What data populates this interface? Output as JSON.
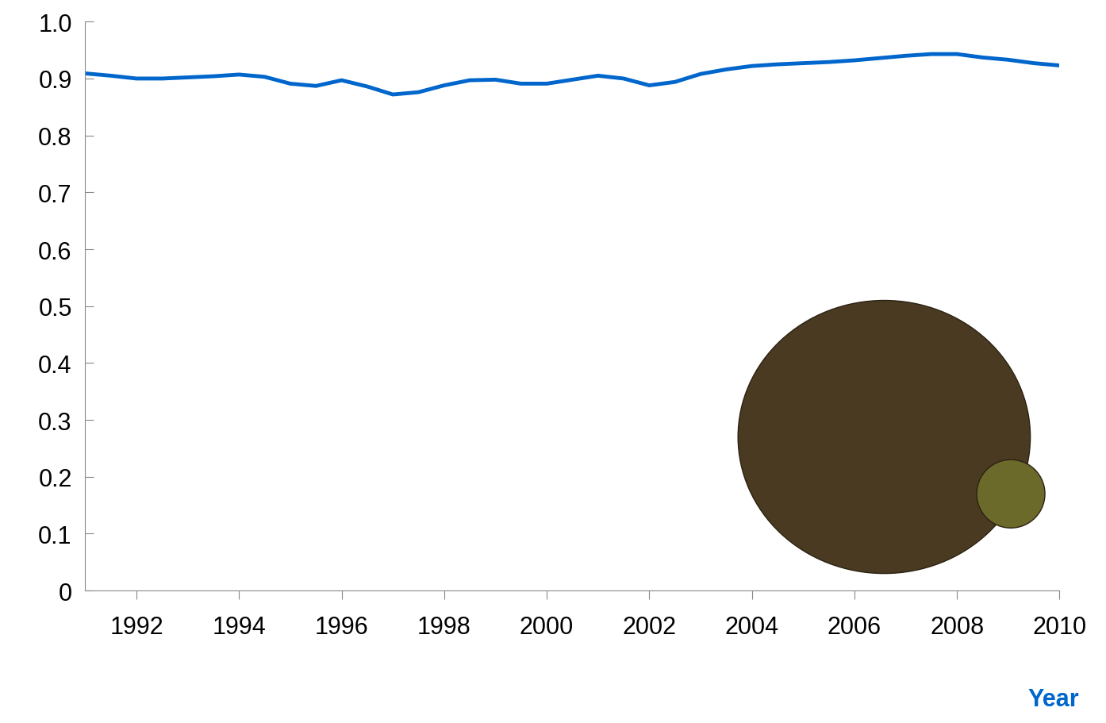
{
  "chart_data": {
    "type": "line",
    "x_label": "Year",
    "x": [
      1991,
      1991.5,
      1992,
      1992.5,
      1993,
      1993.5,
      1994,
      1994.5,
      1995,
      1995.5,
      1996,
      1996.5,
      1997,
      1997.5,
      1998,
      1998.5,
      1999,
      1999.5,
      2000,
      2000.5,
      2001,
      2001.5,
      2002,
      2002.5,
      2003,
      2003.5,
      2004,
      2004.5,
      2005,
      2005.5,
      2006,
      2006.5,
      2007,
      2007.5,
      2008,
      2008.5,
      2009,
      2009.5,
      2010
    ],
    "values": [
      0.909,
      0.905,
      0.9,
      0.9,
      0.902,
      0.904,
      0.907,
      0.903,
      0.891,
      0.887,
      0.897,
      0.886,
      0.872,
      0.876,
      0.888,
      0.897,
      0.898,
      0.891,
      0.891,
      0.898,
      0.905,
      0.9,
      0.888,
      0.894,
      0.908,
      0.916,
      0.922,
      0.925,
      0.927,
      0.929,
      0.932,
      0.936,
      0.94,
      0.943,
      0.943,
      0.937,
      0.933,
      0.927,
      0.923
    ],
    "color": "#0066cc",
    "xlim": [
      1991,
      2010
    ],
    "xticks": [
      1992,
      1994,
      1996,
      1998,
      2000,
      2002,
      2004,
      2006,
      2008,
      2010
    ],
    "ylim": [
      0,
      1.0
    ],
    "yticks": [
      0,
      0.1,
      0.2,
      0.3,
      0.4,
      0.5,
      0.6,
      0.7,
      0.8,
      0.9,
      {
        "value": 1.0,
        "label": "1.0"
      }
    ],
    "grid": false
  }
}
